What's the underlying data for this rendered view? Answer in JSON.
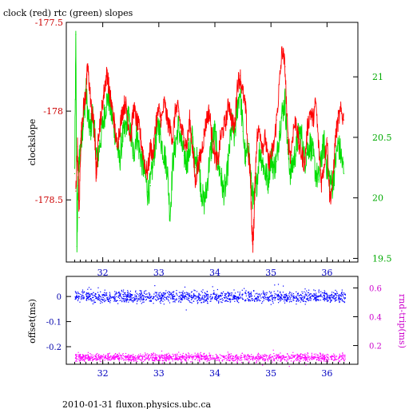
{
  "top_title": "clock (red) rtc (green) slopes",
  "footer": "2010-01-31 fluxon.physics.ubc.ca",
  "colors": {
    "clock": "#ff0000",
    "rtc": "#00dd00",
    "offset": "#0000ff",
    "rtt": "#ff00ff",
    "axis_x": "#0000c0",
    "axis_left_top": "#cc0000",
    "axis_right_top": "#00aa00",
    "axis_left_bottom": "#0000aa",
    "axis_right_bottom": "#cc00cc",
    "text": "#000000"
  },
  "chart_data": [
    {
      "type": "line",
      "xlim": [
        31.35,
        36.55
      ],
      "x_ticks": [
        32,
        33,
        34,
        35,
        36
      ],
      "x_tick_labels": [
        "32",
        "33",
        "34",
        "35",
        "36"
      ],
      "ylabel": "clockslope",
      "ylim_left": [
        -178.85,
        -177.5
      ],
      "y_ticks_left": [
        -177.5,
        -178,
        -178.5
      ],
      "y_tick_labels_left": [
        "-177.5",
        "-178",
        "-178.5"
      ],
      "ylim_right": [
        19.47,
        21.45
      ],
      "y_ticks_right": [
        21,
        20.5,
        20,
        19.5
      ],
      "y_tick_labels_right": [
        "21",
        "20.5",
        "20",
        "19.5"
      ],
      "grid": false,
      "series": [
        {
          "name": "clock (red)",
          "axis": "left",
          "x": [
            31.52,
            31.55,
            31.58,
            31.6,
            31.63,
            31.67,
            31.7,
            31.73,
            31.76,
            31.8,
            31.83,
            31.86,
            31.88,
            31.9,
            31.93,
            31.96,
            32.0,
            32.04,
            32.08,
            32.12,
            32.15,
            32.2,
            32.25,
            32.3,
            32.35,
            32.4,
            32.45,
            32.5,
            32.55,
            32.6,
            32.65,
            32.7,
            32.75,
            32.8,
            32.85,
            32.9,
            32.95,
            33.0,
            33.05,
            33.1,
            33.15,
            33.2,
            33.25,
            33.3,
            33.35,
            33.4,
            33.45,
            33.5,
            33.55,
            33.6,
            33.65,
            33.7,
            33.75,
            33.8,
            33.85,
            33.9,
            33.95,
            34.0,
            34.05,
            34.1,
            34.15,
            34.2,
            34.25,
            34.3,
            34.35,
            34.4,
            34.45,
            34.5,
            34.55,
            34.6,
            34.63,
            34.66,
            34.68,
            34.7,
            34.72,
            34.75,
            34.8,
            34.85,
            34.9,
            34.95,
            35.0,
            35.05,
            35.1,
            35.15,
            35.2,
            35.25,
            35.3,
            35.35,
            35.4,
            35.45,
            35.5,
            35.55,
            35.6,
            35.65,
            35.7,
            35.75,
            35.8,
            35.85,
            35.9,
            35.95,
            36.0,
            36.05,
            36.1,
            36.15,
            36.2,
            36.25,
            36.3
          ],
          "y": [
            -178.45,
            -178.2,
            -178.6,
            -178.25,
            -178.05,
            -177.95,
            -177.9,
            -177.75,
            -177.85,
            -178.0,
            -178.05,
            -178.15,
            -178.35,
            -178.3,
            -178.1,
            -178.05,
            -177.95,
            -177.85,
            -177.78,
            -177.9,
            -177.95,
            -178.05,
            -178.2,
            -178.1,
            -178.0,
            -177.95,
            -178.05,
            -178.15,
            -177.98,
            -178.05,
            -178.1,
            -178.2,
            -178.3,
            -178.35,
            -178.2,
            -178.25,
            -178.05,
            -178.0,
            -178.05,
            -177.95,
            -178.05,
            -178.1,
            -178.15,
            -177.98,
            -178.0,
            -178.1,
            -178.15,
            -178.2,
            -178.05,
            -178.2,
            -178.4,
            -178.3,
            -178.25,
            -178.15,
            -178.05,
            -178.0,
            -178.15,
            -178.25,
            -178.3,
            -178.15,
            -178.1,
            -178.05,
            -177.95,
            -178.05,
            -178.1,
            -177.85,
            -177.8,
            -177.9,
            -178.0,
            -178.25,
            -178.35,
            -178.65,
            -178.75,
            -178.6,
            -178.35,
            -178.15,
            -178.1,
            -178.2,
            -178.15,
            -178.3,
            -178.25,
            -178.2,
            -178.05,
            -177.85,
            -177.65,
            -177.75,
            -178.15,
            -178.25,
            -178.1,
            -178.05,
            -178.2,
            -178.25,
            -178.3,
            -178.1,
            -178.0,
            -178.05,
            -177.95,
            -178.2,
            -178.4,
            -178.3,
            -178.15,
            -178.5,
            -178.4,
            -178.15,
            -178.05,
            -178.0,
            -178.05
          ]
        },
        {
          "name": "rtc (green)",
          "axis": "right",
          "x": [
            31.5,
            31.52,
            31.54,
            31.56,
            31.58,
            31.6,
            31.63,
            31.67,
            31.7,
            31.74,
            31.78,
            31.82,
            31.86,
            31.9,
            31.95,
            32.0,
            32.05,
            32.1,
            32.15,
            32.2,
            32.25,
            32.3,
            32.35,
            32.4,
            32.45,
            32.5,
            32.55,
            32.6,
            32.65,
            32.7,
            32.75,
            32.8,
            32.85,
            32.9,
            32.95,
            33.0,
            33.05,
            33.1,
            33.15,
            33.2,
            33.25,
            33.3,
            33.35,
            33.4,
            33.45,
            33.5,
            33.55,
            33.6,
            33.65,
            33.7,
            33.75,
            33.8,
            33.85,
            33.9,
            33.95,
            34.0,
            34.05,
            34.1,
            34.15,
            34.2,
            34.25,
            34.3,
            34.35,
            34.4,
            34.45,
            34.5,
            34.55,
            34.6,
            34.65,
            34.7,
            34.75,
            34.8,
            34.85,
            34.9,
            34.95,
            35.0,
            35.05,
            35.1,
            35.15,
            35.2,
            35.25,
            35.3,
            35.35,
            35.4,
            35.45,
            35.5,
            35.55,
            35.6,
            35.65,
            35.7,
            35.75,
            35.8,
            35.85,
            35.9,
            35.95,
            36.0,
            36.05,
            36.1,
            36.15,
            36.2,
            36.25,
            36.3
          ],
          "y": [
            20.2,
            21.35,
            19.6,
            20.1,
            20.3,
            20.4,
            20.55,
            20.7,
            20.9,
            20.65,
            20.55,
            20.7,
            20.5,
            20.3,
            20.45,
            20.6,
            20.75,
            20.85,
            20.7,
            20.6,
            20.45,
            20.3,
            20.5,
            20.55,
            20.7,
            20.5,
            20.35,
            20.55,
            20.4,
            20.3,
            20.2,
            20.05,
            20.1,
            20.3,
            20.5,
            20.6,
            20.45,
            20.35,
            20.25,
            19.85,
            20.3,
            20.45,
            20.6,
            20.45,
            20.35,
            20.3,
            20.4,
            20.5,
            20.25,
            20.35,
            20.1,
            19.95,
            20.05,
            20.3,
            20.45,
            20.55,
            20.3,
            20.2,
            20.05,
            20.1,
            20.35,
            20.6,
            20.5,
            20.75,
            20.9,
            20.55,
            20.3,
            20.45,
            20.1,
            19.95,
            20.15,
            20.4,
            20.3,
            20.2,
            20.15,
            20.35,
            20.25,
            20.3,
            20.55,
            20.7,
            20.8,
            20.4,
            20.2,
            20.3,
            20.4,
            20.55,
            20.5,
            20.3,
            20.4,
            20.45,
            20.35,
            20.2,
            20.15,
            20.35,
            20.45,
            20.25,
            20.15,
            20.1,
            20.3,
            20.45,
            20.35,
            20.2
          ]
        }
      ]
    },
    {
      "type": "scatter",
      "xlim": [
        31.35,
        36.55
      ],
      "x_ticks": [
        32,
        33,
        34,
        35,
        36
      ],
      "x_tick_labels": [
        "32",
        "33",
        "34",
        "35",
        "36"
      ],
      "ylabel_left": "offset(ms)",
      "ylim_left": [
        -0.27,
        0.08
      ],
      "y_ticks_left": [
        0,
        -0.1,
        -0.2
      ],
      "y_tick_labels_left": [
        "0",
        "-0.1",
        "-0.2"
      ],
      "ylabel_right": "rnd-trip(ms)",
      "ylim_right": [
        0.07,
        0.68
      ],
      "y_ticks_right": [
        0.6,
        0.4,
        0.2
      ],
      "y_tick_labels_right": [
        "0.6",
        "0.4",
        "0.2"
      ],
      "grid": false,
      "series": [
        {
          "name": "offset",
          "axis": "left",
          "x_range": [
            31.5,
            36.32
          ],
          "center": 0.0,
          "spread": 0.025
        },
        {
          "name": "rnd-trip",
          "axis": "right",
          "x_range": [
            31.5,
            36.32
          ],
          "center": 0.12,
          "spread": 0.03
        }
      ]
    }
  ]
}
